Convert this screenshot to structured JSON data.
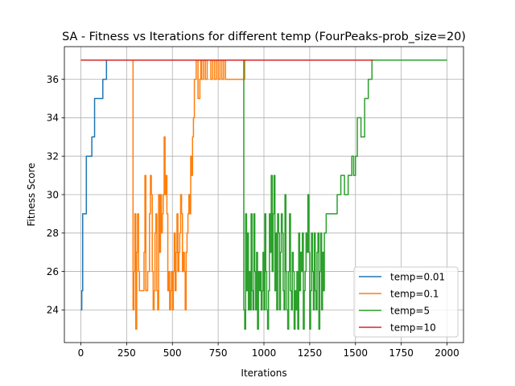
{
  "chart_data": {
    "type": "line",
    "title": "SA - Fitness vs Iterations for different temp (FourPeaks-prob_size=20)",
    "xlabel": "Iterations",
    "ylabel": "Fitness Score",
    "xlim": [
      -90,
      2090
    ],
    "ylim": [
      22.3,
      37.7
    ],
    "xticks": [
      0,
      250,
      500,
      750,
      1000,
      1250,
      1500,
      1750,
      2000
    ],
    "yticks": [
      24,
      26,
      28,
      30,
      32,
      34,
      36
    ],
    "grid": true,
    "legend_position": "lower-right",
    "line_style": "step",
    "series": [
      {
        "name": "temp=0.01",
        "color": "#1f77b4",
        "x": [
          0,
          5,
          10,
          20,
          30,
          50,
          60,
          75,
          120,
          140,
          2000
        ],
        "y": [
          24,
          25,
          29,
          29,
          32,
          32,
          33,
          35,
          36,
          37,
          37
        ]
      },
      {
        "name": "temp=0.1",
        "color": "#ff7f0e",
        "x": [
          0,
          285,
          290,
          295,
          300,
          305,
          310,
          315,
          320,
          330,
          345,
          350,
          355,
          365,
          375,
          380,
          385,
          390,
          395,
          400,
          405,
          410,
          415,
          420,
          425,
          430,
          435,
          440,
          445,
          450,
          455,
          460,
          465,
          470,
          475,
          480,
          485,
          490,
          495,
          500,
          505,
          510,
          515,
          520,
          525,
          530,
          535,
          540,
          545,
          550,
          555,
          560,
          565,
          570,
          575,
          580,
          585,
          590,
          595,
          600,
          605,
          610,
          615,
          620,
          625,
          630,
          635,
          640,
          645,
          650,
          655,
          660,
          670,
          680,
          690,
          700,
          710,
          720,
          730,
          740,
          750,
          760,
          770,
          780,
          790,
          800,
          820,
          850,
          880,
          895,
          2000
        ],
        "y": [
          37,
          24,
          26,
          29,
          23,
          27,
          29,
          26,
          25,
          25,
          27,
          31,
          25,
          26,
          29,
          31,
          30,
          26,
          24,
          25,
          28,
          29,
          25,
          24,
          30,
          27,
          30,
          28,
          29,
          30,
          33,
          30,
          31,
          29,
          25,
          26,
          24,
          25,
          26,
          24,
          26,
          28,
          25,
          27,
          29,
          26,
          27,
          28,
          30,
          29,
          26,
          27,
          26,
          24,
          27,
          28,
          29,
          30,
          29,
          32,
          31,
          33,
          34,
          36,
          36,
          37,
          37,
          35,
          35,
          36,
          37,
          36,
          37,
          36,
          37,
          37,
          36,
          37,
          36,
          37,
          36,
          37,
          36,
          37,
          36,
          36,
          36,
          36,
          36,
          37,
          37
        ]
      },
      {
        "name": "temp=5",
        "color": "#2ca02c",
        "x": [
          0,
          890,
          895,
          900,
          905,
          910,
          915,
          920,
          925,
          930,
          935,
          940,
          945,
          950,
          955,
          960,
          965,
          970,
          975,
          980,
          985,
          990,
          995,
          1000,
          1005,
          1010,
          1015,
          1020,
          1025,
          1030,
          1035,
          1040,
          1045,
          1050,
          1055,
          1060,
          1065,
          1070,
          1075,
          1080,
          1085,
          1090,
          1095,
          1100,
          1105,
          1110,
          1115,
          1120,
          1125,
          1130,
          1135,
          1140,
          1145,
          1150,
          1155,
          1160,
          1165,
          1170,
          1175,
          1180,
          1185,
          1190,
          1195,
          1200,
          1205,
          1210,
          1215,
          1220,
          1225,
          1230,
          1235,
          1240,
          1245,
          1250,
          1255,
          1260,
          1265,
          1270,
          1275,
          1280,
          1285,
          1290,
          1295,
          1300,
          1305,
          1310,
          1315,
          1320,
          1325,
          1330,
          1340,
          1360,
          1380,
          1400,
          1420,
          1440,
          1460,
          1480,
          1490,
          1500,
          1510,
          1530,
          1550,
          1570,
          1590,
          1610,
          1640,
          1700,
          2000
        ],
        "y": [
          37,
          24,
          23,
          29,
          25,
          28,
          24,
          26,
          24,
          29,
          25,
          24,
          29,
          26,
          24,
          27,
          23,
          26,
          25,
          26,
          24,
          25,
          27,
          24,
          29,
          26,
          24,
          23,
          25,
          29,
          27,
          31,
          26,
          29,
          31,
          25,
          28,
          24,
          29,
          28,
          24,
          27,
          29,
          28,
          25,
          24,
          30,
          26,
          24,
          23,
          26,
          29,
          25,
          24,
          27,
          26,
          23,
          25,
          24,
          26,
          23,
          28,
          25,
          27,
          26,
          28,
          23,
          25,
          26,
          28,
          27,
          30,
          27,
          23,
          25,
          28,
          26,
          24,
          28,
          25,
          24,
          27,
          28,
          23,
          26,
          28,
          24,
          27,
          25,
          28,
          29,
          29,
          29,
          30,
          31,
          30,
          31,
          32,
          31,
          32,
          34,
          33,
          35,
          36,
          37,
          37,
          37,
          37,
          37
        ]
      },
      {
        "name": "temp=10",
        "color": "#d62728",
        "x": [
          0,
          1600
        ],
        "y": [
          37,
          37
        ]
      }
    ]
  }
}
